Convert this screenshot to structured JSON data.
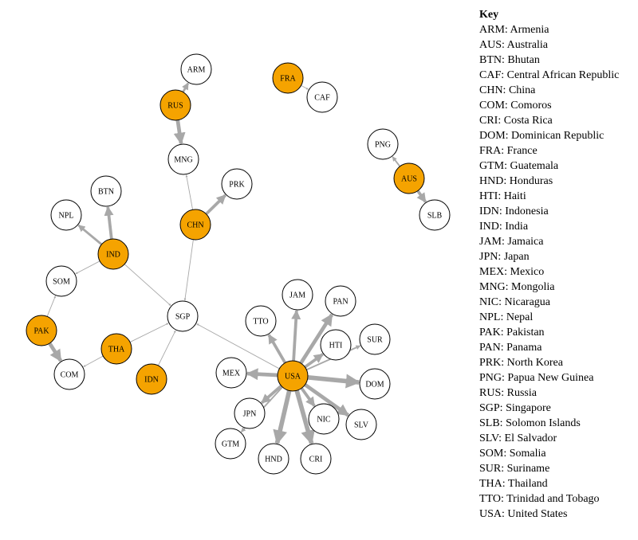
{
  "colors": {
    "highlight": "#f5a300",
    "plain": "#ffffff",
    "edge": "#a8a8a8",
    "stroke": "#000000"
  },
  "nodes": [
    {
      "id": "ARM",
      "highlight": false
    },
    {
      "id": "RUS",
      "highlight": true
    },
    {
      "id": "MNG",
      "highlight": false
    },
    {
      "id": "FRA",
      "highlight": true
    },
    {
      "id": "CAF",
      "highlight": false
    },
    {
      "id": "PNG",
      "highlight": false
    },
    {
      "id": "AUS",
      "highlight": true
    },
    {
      "id": "SLB",
      "highlight": false
    },
    {
      "id": "PRK",
      "highlight": false
    },
    {
      "id": "CHN",
      "highlight": true
    },
    {
      "id": "BTN",
      "highlight": false
    },
    {
      "id": "NPL",
      "highlight": false
    },
    {
      "id": "IND",
      "highlight": true
    },
    {
      "id": "SOM",
      "highlight": false
    },
    {
      "id": "PAK",
      "highlight": true
    },
    {
      "id": "COM",
      "highlight": false
    },
    {
      "id": "THA",
      "highlight": true
    },
    {
      "id": "SGP",
      "highlight": false
    },
    {
      "id": "IDN",
      "highlight": true
    },
    {
      "id": "JAM",
      "highlight": false
    },
    {
      "id": "PAN",
      "highlight": false
    },
    {
      "id": "TTO",
      "highlight": false
    },
    {
      "id": "HTI",
      "highlight": false
    },
    {
      "id": "SUR",
      "highlight": false
    },
    {
      "id": "MEX",
      "highlight": false
    },
    {
      "id": "USA",
      "highlight": true
    },
    {
      "id": "DOM",
      "highlight": false
    },
    {
      "id": "JPN",
      "highlight": false
    },
    {
      "id": "NIC",
      "highlight": false
    },
    {
      "id": "SLV",
      "highlight": false
    },
    {
      "id": "GTM",
      "highlight": false
    },
    {
      "id": "HND",
      "highlight": false
    },
    {
      "id": "CRI",
      "highlight": false
    }
  ],
  "edges": [
    {
      "from": "RUS",
      "to": "ARM",
      "weight": 3
    },
    {
      "from": "RUS",
      "to": "MNG",
      "weight": 5
    },
    {
      "from": "FRA",
      "to": "CAF",
      "weight": 1
    },
    {
      "from": "AUS",
      "to": "PNG",
      "weight": 2
    },
    {
      "from": "AUS",
      "to": "SLB",
      "weight": 4
    },
    {
      "from": "CHN",
      "to": "PRK",
      "weight": 4
    },
    {
      "from": "CHN",
      "to": "MNG",
      "weight": 1
    },
    {
      "from": "CHN",
      "to": "SGP",
      "weight": 1
    },
    {
      "from": "IND",
      "to": "BTN",
      "weight": 4
    },
    {
      "from": "IND",
      "to": "NPL",
      "weight": 3
    },
    {
      "from": "IND",
      "to": "SOM",
      "weight": 1
    },
    {
      "from": "IND",
      "to": "SGP",
      "weight": 1
    },
    {
      "from": "PAK",
      "to": "SOM",
      "weight": 1
    },
    {
      "from": "PAK",
      "to": "COM",
      "weight": 5
    },
    {
      "from": "THA",
      "to": "COM",
      "weight": 1
    },
    {
      "from": "THA",
      "to": "SGP",
      "weight": 1
    },
    {
      "from": "IDN",
      "to": "SGP",
      "weight": 1
    },
    {
      "from": "USA",
      "to": "SGP",
      "weight": 1
    },
    {
      "from": "USA",
      "to": "JAM",
      "weight": 4
    },
    {
      "from": "USA",
      "to": "PAN",
      "weight": 5
    },
    {
      "from": "USA",
      "to": "TTO",
      "weight": 4
    },
    {
      "from": "USA",
      "to": "HTI",
      "weight": 4
    },
    {
      "from": "USA",
      "to": "SUR",
      "weight": 2
    },
    {
      "from": "USA",
      "to": "MEX",
      "weight": 5
    },
    {
      "from": "USA",
      "to": "DOM",
      "weight": 6
    },
    {
      "from": "USA",
      "to": "JPN",
      "weight": 4
    },
    {
      "from": "USA",
      "to": "NIC",
      "weight": 4
    },
    {
      "from": "USA",
      "to": "SLV",
      "weight": 5
    },
    {
      "from": "USA",
      "to": "GTM",
      "weight": 2
    },
    {
      "from": "USA",
      "to": "HND",
      "weight": 6
    },
    {
      "from": "USA",
      "to": "CRI",
      "weight": 6
    }
  ],
  "key": {
    "title": "Key",
    "items": [
      "ARM: Armenia",
      "AUS: Australia",
      "BTN: Bhutan",
      "CAF: Central African Republic",
      "CHN: China",
      "COM: Comoros",
      "CRI: Costa Rica",
      "DOM: Dominican Republic",
      "FRA: France",
      "GTM: Guatemala",
      "HND: Honduras",
      "HTI: Haiti",
      "IDN: Indonesia",
      "IND: India",
      "JAM: Jamaica",
      "JPN: Japan",
      "MEX: Mexico",
      "MNG: Mongolia",
      "NIC: Nicaragua",
      "NPL: Nepal",
      "PAK: Pakistan",
      "PAN: Panama",
      "PRK: North Korea",
      "PNG: Papua New Guinea",
      "RUS: Russia",
      "SGP: Singapore",
      "SLB: Solomon Islands",
      "SLV: El Salvador",
      "SOM: Somalia",
      "SUR: Suriname",
      "THA: Thailand",
      "TTO: Trinidad and Tobago",
      "USA: United States"
    ]
  }
}
